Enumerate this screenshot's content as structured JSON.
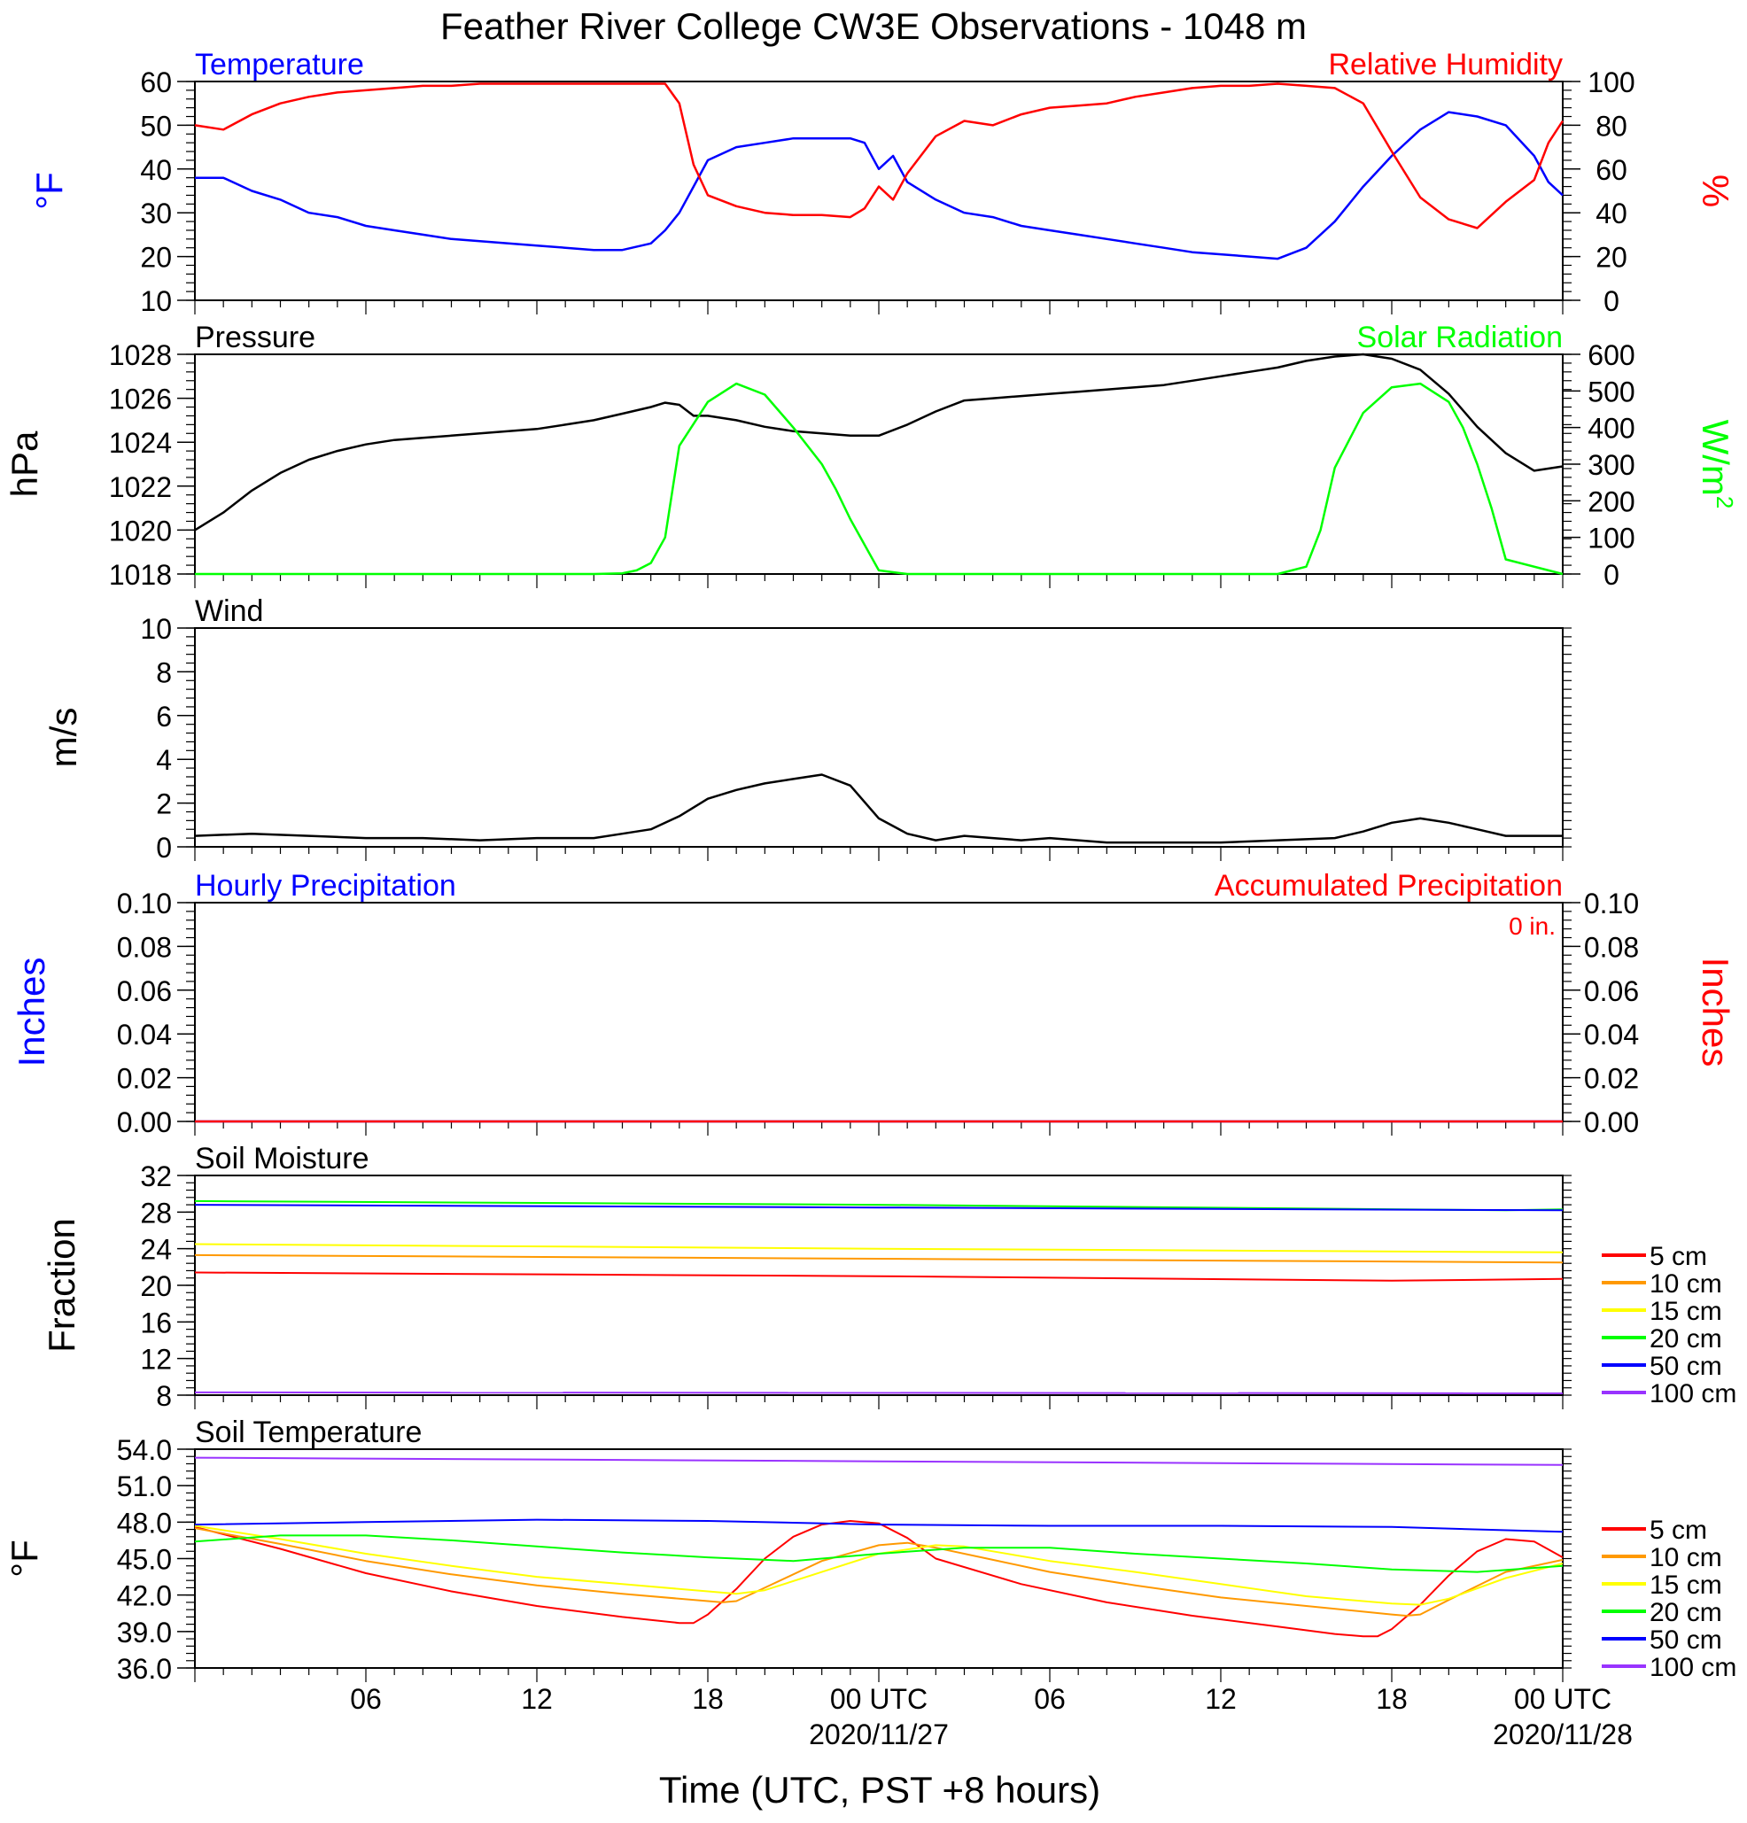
{
  "title": "Feather River College CW3E Observations - 1048 m",
  "x_axis": {
    "label": "Time (UTC, PST +8 hours)",
    "ticks": [
      "06",
      "12",
      "18",
      "00 UTC",
      "06",
      "12",
      "18",
      "00 UTC"
    ],
    "dates": [
      "2020/11/27",
      "2020/11/28"
    ]
  },
  "colors": {
    "temperature": "#0000ff",
    "humidity": "#ff0000",
    "pressure": "#000000",
    "solar": "#00ff00",
    "wind": "#000000",
    "wind_barb": "#ff0000",
    "precip_hourly": "#0000ff",
    "precip_accum": "#ff0000",
    "soil": {
      "5 cm": "#ff0000",
      "10 cm": "#ff9900",
      "15 cm": "#ffff00",
      "20 cm": "#00ff00",
      "50 cm": "#0000ff",
      "100 cm": "#9933ff"
    }
  },
  "chart_data": [
    {
      "id": "temp_rh",
      "type": "line",
      "left_title": "Temperature",
      "right_title": "Relative Humidity",
      "ylabel_left": "°F",
      "ylabel_right": "%",
      "ylim_left": [
        10,
        60
      ],
      "yticks_left": [
        "60",
        "50",
        "40",
        "30",
        "20",
        "10"
      ],
      "ylim_right": [
        0,
        100
      ],
      "yticks_right": [
        "100",
        "80",
        "60",
        "40",
        "20",
        "0"
      ],
      "series": [
        {
          "name": "Temperature",
          "axis": "left",
          "x": [
            0,
            1,
            2,
            3,
            4,
            5,
            6,
            7,
            8,
            9,
            10,
            11,
            12,
            13,
            14,
            15,
            16,
            16.5,
            17,
            17.5,
            18,
            19,
            20,
            21,
            22,
            23,
            23.5,
            24,
            24.5,
            25,
            26,
            27,
            28,
            29,
            30,
            31,
            32,
            33,
            34,
            35,
            36,
            37,
            38,
            39,
            40,
            41,
            42,
            43,
            44,
            45,
            46,
            47,
            47.5,
            48
          ],
          "values": [
            38,
            38,
            35,
            33,
            30,
            29,
            27,
            26,
            25,
            24,
            23.5,
            23,
            22.5,
            22,
            21.5,
            21.5,
            23,
            26,
            30,
            36,
            42,
            45,
            46,
            47,
            47,
            47,
            46,
            40,
            43,
            37,
            33,
            30,
            29,
            27,
            26,
            25,
            24,
            23,
            22,
            21,
            20.5,
            20,
            19.5,
            22,
            28,
            36,
            43,
            49,
            53,
            52,
            50,
            43,
            37,
            34
          ]
        },
        {
          "name": "Relative Humidity",
          "axis": "right",
          "x": [
            0,
            1,
            2,
            3,
            4,
            5,
            6,
            7,
            8,
            9,
            10,
            11,
            12,
            13,
            14,
            15,
            16,
            16.5,
            17,
            17.5,
            18,
            19,
            20,
            21,
            22,
            23,
            23.5,
            24,
            24.5,
            25,
            26,
            27,
            28,
            29,
            30,
            31,
            32,
            33,
            34,
            35,
            36,
            37,
            38,
            39,
            40,
            41,
            42,
            43,
            44,
            45,
            46,
            47,
            47.5,
            48
          ],
          "values": [
            80,
            78,
            85,
            90,
            93,
            95,
            96,
            97,
            98,
            98,
            99,
            99,
            99,
            99,
            99,
            99,
            99,
            99,
            90,
            62,
            48,
            43,
            40,
            39,
            39,
            38,
            42,
            52,
            46,
            58,
            75,
            82,
            80,
            85,
            88,
            89,
            90,
            93,
            95,
            97,
            98,
            98,
            99,
            98,
            97,
            90,
            68,
            47,
            37,
            33,
            45,
            55,
            72,
            82
          ]
        }
      ]
    },
    {
      "id": "pressure_solar",
      "type": "line",
      "left_title": "Pressure",
      "right_title": "Solar Radiation",
      "ylabel_left": "hPa",
      "ylabel_right": "W/m",
      "ylabel_right_sup": "2",
      "ylim_left": [
        1018,
        1028
      ],
      "yticks_left": [
        "1028",
        "1026",
        "1024",
        "1022",
        "1020",
        "1018"
      ],
      "ylim_right": [
        0,
        600
      ],
      "yticks_right": [
        "600",
        "500",
        "400",
        "300",
        "200",
        "100",
        "0"
      ],
      "series": [
        {
          "name": "Pressure",
          "axis": "left",
          "x": [
            0,
            1,
            2,
            3,
            4,
            5,
            6,
            7,
            8,
            9,
            10,
            11,
            12,
            13,
            14,
            15,
            16,
            16.5,
            17,
            17.5,
            18,
            19,
            20,
            21,
            22,
            23,
            24,
            25,
            26,
            27,
            28,
            29,
            30,
            31,
            32,
            33,
            34,
            35,
            36,
            37,
            38,
            39,
            40,
            41,
            42,
            43,
            44,
            45,
            46,
            47,
            48
          ],
          "values": [
            1020,
            1020.8,
            1021.8,
            1022.6,
            1023.2,
            1023.6,
            1023.9,
            1024.1,
            1024.2,
            1024.3,
            1024.4,
            1024.5,
            1024.6,
            1024.8,
            1025,
            1025.3,
            1025.6,
            1025.8,
            1025.7,
            1025.2,
            1025.2,
            1025,
            1024.7,
            1024.5,
            1024.4,
            1024.3,
            1024.3,
            1024.8,
            1025.4,
            1025.9,
            1026,
            1026.1,
            1026.2,
            1026.3,
            1026.4,
            1026.5,
            1026.6,
            1026.8,
            1027,
            1027.2,
            1027.4,
            1027.7,
            1027.9,
            1028,
            1027.8,
            1027.3,
            1026.2,
            1024.7,
            1023.5,
            1022.7,
            1022.9
          ]
        },
        {
          "name": "Solar Radiation",
          "axis": "right",
          "x": [
            0,
            14,
            15,
            15.5,
            16,
            16.5,
            17,
            18,
            19,
            20,
            21,
            22,
            22.5,
            23,
            24,
            25,
            38,
            39,
            39.5,
            40,
            41,
            42,
            43,
            44,
            44.5,
            45,
            45.5,
            46,
            48
          ],
          "values": [
            0,
            0,
            2,
            10,
            30,
            100,
            350,
            470,
            520,
            490,
            400,
            300,
            230,
            150,
            10,
            0,
            0,
            20,
            120,
            290,
            440,
            510,
            520,
            470,
            400,
            300,
            180,
            40,
            0
          ]
        }
      ]
    },
    {
      "id": "wind",
      "type": "line",
      "left_title": "Wind",
      "ylabel_left": "m/s",
      "ylim_left": [
        0,
        10
      ],
      "yticks_left": [
        "10",
        "8",
        "6",
        "4",
        "2",
        "0"
      ],
      "series": [
        {
          "name": "Wind",
          "axis": "left",
          "x": [
            0,
            2,
            4,
            6,
            8,
            10,
            12,
            14,
            15,
            16,
            17,
            18,
            19,
            20,
            21,
            22,
            23,
            24,
            25,
            26,
            27,
            28,
            29,
            30,
            31,
            32,
            34,
            36,
            38,
            40,
            41,
            42,
            43,
            44,
            45,
            46,
            47,
            48
          ],
          "values": [
            0.5,
            0.6,
            0.5,
            0.4,
            0.4,
            0.3,
            0.4,
            0.4,
            0.6,
            0.8,
            1.4,
            2.2,
            2.6,
            2.9,
            3.1,
            3.3,
            2.8,
            1.3,
            0.6,
            0.3,
            0.5,
            0.4,
            0.3,
            0.4,
            0.3,
            0.2,
            0.2,
            0.2,
            0.3,
            0.4,
            0.7,
            1.1,
            1.3,
            1.1,
            0.8,
            0.5,
            0.5,
            0.5
          ]
        }
      ]
    },
    {
      "id": "precip",
      "type": "line",
      "left_title": "Hourly Precipitation",
      "right_title": "Accumulated Precipitation",
      "annotation": "0 in.",
      "ylabel_left": "Inches",
      "ylabel_right": "Inches",
      "ylim_left": [
        0,
        0.1
      ],
      "yticks_left": [
        "0.10",
        "0.08",
        "0.06",
        "0.04",
        "0.02",
        "0.00"
      ],
      "ylim_right": [
        0,
        0.1
      ],
      "yticks_right": [
        "0.10",
        "0.08",
        "0.06",
        "0.04",
        "0.02",
        "0.00"
      ],
      "series": [
        {
          "name": "Hourly Precipitation",
          "axis": "left",
          "x": [
            0,
            48
          ],
          "values": [
            0,
            0
          ]
        },
        {
          "name": "Accumulated Precipitation",
          "axis": "right",
          "x": [
            0,
            48
          ],
          "values": [
            0,
            0
          ]
        }
      ]
    },
    {
      "id": "soil_moisture",
      "type": "line",
      "left_title": "Soil Moisture",
      "ylabel_left": "Fraction",
      "ylim_left": [
        8,
        32
      ],
      "yticks_left": [
        "32",
        "28",
        "24",
        "20",
        "16",
        "12",
        "8"
      ],
      "legend": [
        "5 cm",
        "10 cm",
        "15 cm",
        "20 cm",
        "50 cm",
        "100 cm"
      ],
      "series": [
        {
          "name": "5 cm",
          "x": [
            0,
            24,
            42,
            48
          ],
          "values": [
            21.4,
            21.0,
            20.5,
            20.7
          ]
        },
        {
          "name": "10 cm",
          "x": [
            0,
            24,
            48
          ],
          "values": [
            23.3,
            22.9,
            22.5
          ]
        },
        {
          "name": "15 cm",
          "x": [
            0,
            24,
            48
          ],
          "values": [
            24.5,
            24.0,
            23.6
          ]
        },
        {
          "name": "20 cm",
          "x": [
            0,
            24,
            46,
            48
          ],
          "values": [
            29.2,
            28.8,
            28.2,
            28.3
          ]
        },
        {
          "name": "50 cm",
          "x": [
            0,
            24,
            48
          ],
          "values": [
            28.8,
            28.5,
            28.2
          ]
        },
        {
          "name": "100 cm",
          "x": [
            0,
            48
          ],
          "values": [
            8.3,
            8.2
          ]
        }
      ]
    },
    {
      "id": "soil_temperature",
      "type": "line",
      "left_title": "Soil Temperature",
      "ylabel_left": "°F",
      "ylim_left": [
        36,
        54
      ],
      "yticks_left": [
        "54.0",
        "51.0",
        "48.0",
        "45.0",
        "42.0",
        "39.0",
        "36.0"
      ],
      "legend": [
        "5 cm",
        "10 cm",
        "15 cm",
        "20 cm",
        "50 cm",
        "100 cm"
      ],
      "series": [
        {
          "name": "5 cm",
          "x": [
            0,
            3,
            6,
            9,
            12,
            15,
            17,
            17.5,
            18,
            19,
            20,
            21,
            22,
            23,
            24,
            25,
            26,
            29,
            32,
            35,
            38,
            40,
            41,
            41.5,
            42,
            43,
            44,
            45,
            46,
            47,
            48
          ],
          "values": [
            47.6,
            45.8,
            43.8,
            42.3,
            41.1,
            40.2,
            39.7,
            39.7,
            40.4,
            42.5,
            45.0,
            46.8,
            47.8,
            48.1,
            47.9,
            46.7,
            45.0,
            42.9,
            41.4,
            40.3,
            39.4,
            38.8,
            38.6,
            38.6,
            39.2,
            41.2,
            43.6,
            45.6,
            46.6,
            46.4,
            45.1
          ]
        },
        {
          "name": "10 cm",
          "x": [
            0,
            3,
            6,
            9,
            12,
            15,
            18,
            18.5,
            19,
            20,
            22,
            24,
            25,
            26,
            28,
            30,
            33,
            36,
            39,
            42,
            42.5,
            43,
            44,
            46,
            48
          ],
          "values": [
            47.5,
            46.2,
            44.8,
            43.7,
            42.8,
            42.1,
            41.5,
            41.4,
            41.5,
            42.6,
            44.8,
            46.1,
            46.3,
            45.9,
            44.9,
            43.9,
            42.8,
            41.8,
            41.1,
            40.4,
            40.3,
            40.4,
            41.6,
            43.9,
            44.9
          ]
        },
        {
          "name": "15 cm",
          "x": [
            0,
            3,
            6,
            9,
            12,
            15,
            18,
            19,
            20,
            22,
            24,
            26,
            27,
            28,
            30,
            33,
            36,
            39,
            42,
            43,
            44,
            46,
            48
          ],
          "values": [
            47.7,
            46.6,
            45.4,
            44.4,
            43.5,
            42.9,
            42.3,
            42.1,
            42.4,
            43.9,
            45.4,
            46.1,
            46.0,
            45.6,
            44.8,
            43.9,
            42.9,
            41.9,
            41.3,
            41.2,
            41.7,
            43.4,
            44.6
          ]
        },
        {
          "name": "20 cm",
          "x": [
            0,
            3,
            6,
            9,
            12,
            15,
            18,
            21,
            24,
            27,
            30,
            33,
            36,
            39,
            42,
            45,
            48
          ],
          "values": [
            46.4,
            46.9,
            46.9,
            46.5,
            46.0,
            45.5,
            45.1,
            44.8,
            45.4,
            45.9,
            45.9,
            45.4,
            45.0,
            44.6,
            44.1,
            43.9,
            44.4
          ]
        },
        {
          "name": "50 cm",
          "x": [
            0,
            6,
            12,
            18,
            24,
            30,
            36,
            42,
            48
          ],
          "values": [
            47.8,
            48.0,
            48.2,
            48.1,
            47.8,
            47.7,
            47.7,
            47.6,
            47.2
          ]
        },
        {
          "name": "100 cm",
          "x": [
            0,
            24,
            48
          ],
          "values": [
            53.3,
            53.0,
            52.7
          ]
        }
      ]
    }
  ]
}
